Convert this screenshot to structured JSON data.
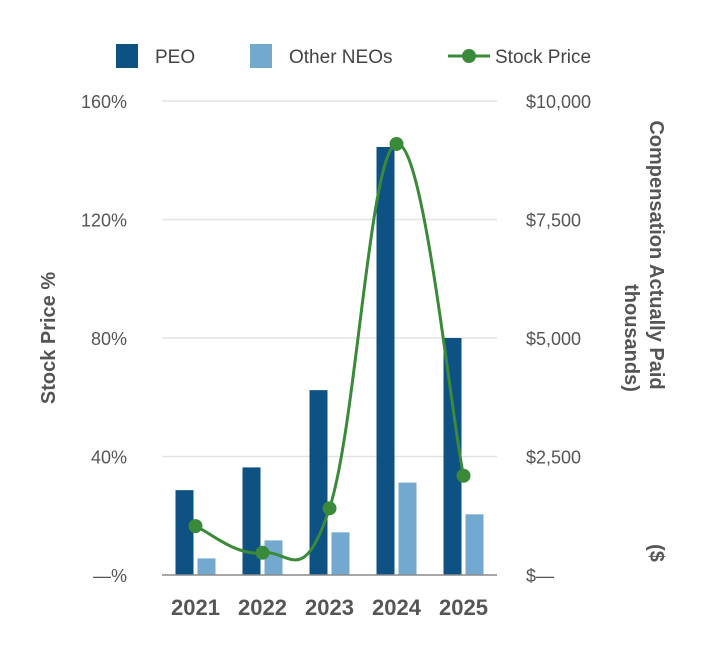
{
  "chart_data": {
    "type": "bar",
    "categories": [
      "2021",
      "2022",
      "2023",
      "2024",
      "2025"
    ],
    "series": [
      {
        "name": "PEO",
        "axis": "right",
        "color": "#0d5282",
        "values": [
          1790,
          2270,
          3900,
          9030,
          5000
        ]
      },
      {
        "name": "Other NEOs",
        "axis": "right",
        "color": "#74a9cf",
        "values": [
          350,
          730,
          900,
          1950,
          1280
        ]
      },
      {
        "name": "Stock Price",
        "type": "line",
        "axis": "left",
        "color": "#3a8a3a",
        "values": [
          16.5,
          7.5,
          22.5,
          145.5,
          33.5
        ]
      }
    ],
    "left_axis": {
      "title": "Stock Price %",
      "range": [
        0,
        160
      ],
      "ticks": [
        0,
        40,
        80,
        120,
        160
      ],
      "tick_labels": [
        "—%",
        "40%",
        "80%",
        "120%",
        "160%"
      ]
    },
    "right_axis": {
      "title_lines": [
        "Compensation Actually Paid",
        "thousands)",
        "($"
      ],
      "range": [
        0,
        10000
      ],
      "ticks": [
        0,
        2500,
        5000,
        7500,
        10000
      ],
      "tick_labels": [
        "$—",
        "$2,500",
        "$5,000",
        "$7,500",
        "$10,000"
      ]
    },
    "grid": true,
    "legend_position": "top"
  }
}
